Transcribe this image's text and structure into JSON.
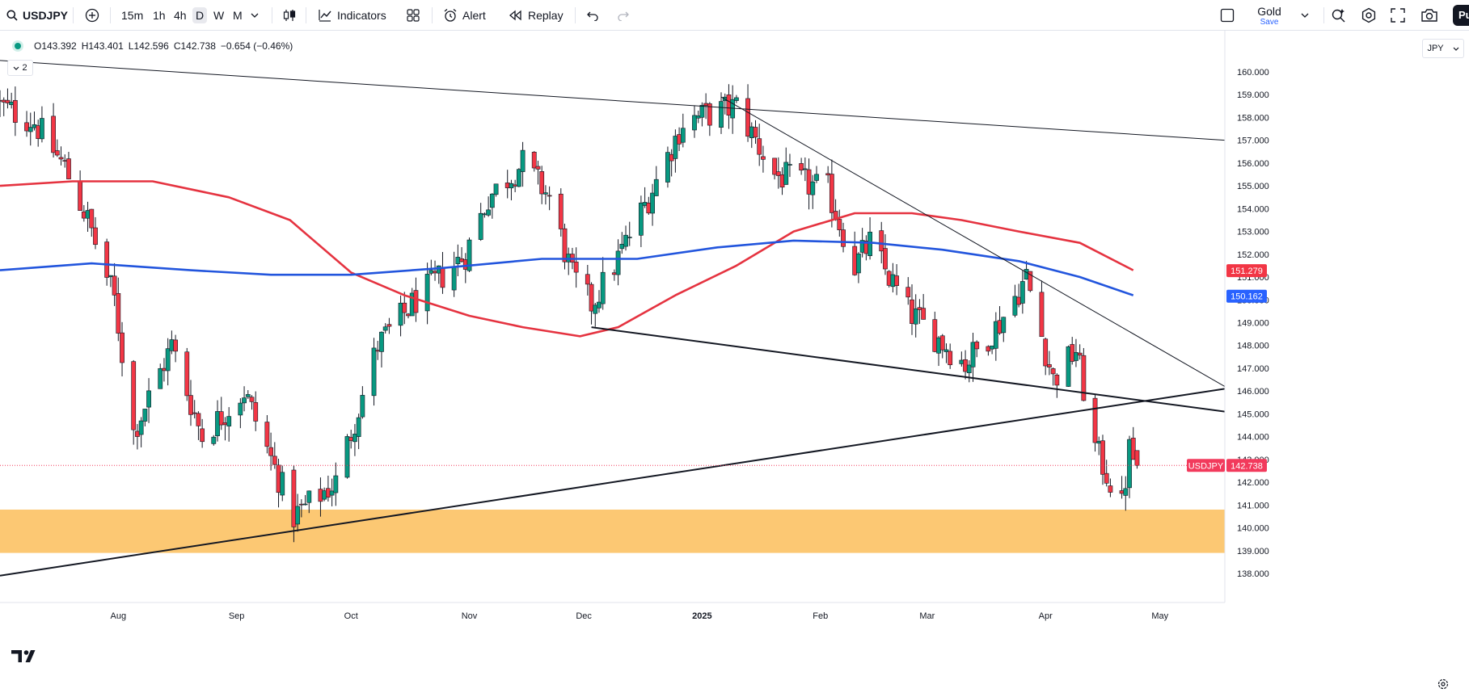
{
  "toolbar": {
    "symbol": "USDJPY",
    "intervals": [
      "15m",
      "1h",
      "4h",
      "D",
      "W",
      "M"
    ],
    "active_interval": "D",
    "indicators_label": "Indicators",
    "alert_label": "Alert",
    "replay_label": "Replay",
    "layout_name": "Gold",
    "save_label": "Save",
    "publish_label": "Pu"
  },
  "legend": {
    "open": "O143.392",
    "high": "H143.401",
    "low": "L142.596",
    "close": "C142.738",
    "change": "−0.654 (−0.46%)",
    "indicator_count": "2"
  },
  "currency": "JPY",
  "colors": {
    "up": "#089981",
    "down": "#f23645",
    "ma_red": "#e53340",
    "ma_blue": "#2255dd",
    "zone": "#fcc56c",
    "price_label": "#f23a5c"
  },
  "chart_data": {
    "type": "candlestick",
    "symbol": "USDJPY",
    "ylim": [
      137.5,
      160.6
    ],
    "y_ticks": [
      "160.000",
      "159.000",
      "158.000",
      "157.000",
      "156.000",
      "155.000",
      "154.000",
      "153.000",
      "152.000",
      "151.000",
      "150.000",
      "149.000",
      "148.000",
      "147.000",
      "146.000",
      "145.000",
      "144.000",
      "143.000",
      "142.000",
      "141.000",
      "140.000",
      "139.000",
      "138.000"
    ],
    "x_ticks": [
      {
        "label": "Aug",
        "date": "2024-08-01"
      },
      {
        "label": "Sep",
        "date": "2024-09-01"
      },
      {
        "label": "Oct",
        "date": "2024-10-01"
      },
      {
        "label": "Nov",
        "date": "2024-11-01"
      },
      {
        "label": "Dec",
        "date": "2024-12-01"
      },
      {
        "label": "2025",
        "date": "2025-01-01"
      },
      {
        "label": "Feb",
        "date": "2025-02-01"
      },
      {
        "label": "Mar",
        "date": "2025-03-01"
      },
      {
        "label": "Apr",
        "date": "2025-04-01"
      },
      {
        "label": "May",
        "date": "2025-05-01"
      }
    ],
    "x_range": [
      "2024-07-01",
      "2025-05-18"
    ],
    "last_price": 142.738,
    "series_labels": [
      {
        "text": "151.279",
        "value": 151.279,
        "color": "#f23645"
      },
      {
        "text": "150.162",
        "value": 150.162,
        "color": "#2962ff"
      }
    ],
    "last_label": {
      "name": "USDJPY",
      "text": "142.738"
    },
    "close_path": [
      {
        "date": "2024-07-01",
        "close": 158.5
      },
      {
        "date": "2024-07-10",
        "close": 157.8
      },
      {
        "date": "2024-07-18",
        "close": 155.8
      },
      {
        "date": "2024-07-24",
        "close": 153.5
      },
      {
        "date": "2024-07-31",
        "close": 150.0
      },
      {
        "date": "2024-08-05",
        "close": 144.2
      },
      {
        "date": "2024-08-15",
        "close": 148.0
      },
      {
        "date": "2024-08-23",
        "close": 144.0
      },
      {
        "date": "2024-09-03",
        "close": 146.0
      },
      {
        "date": "2024-09-16",
        "close": 140.5
      },
      {
        "date": "2024-09-27",
        "close": 142.0
      },
      {
        "date": "2024-10-08",
        "close": 148.0
      },
      {
        "date": "2024-10-18",
        "close": 150.0
      },
      {
        "date": "2024-10-31",
        "close": 152.0
      },
      {
        "date": "2024-11-06",
        "close": 154.5
      },
      {
        "date": "2024-11-15",
        "close": 156.0
      },
      {
        "date": "2024-11-22",
        "close": 154.5
      },
      {
        "date": "2024-11-28",
        "close": 151.0
      },
      {
        "date": "2024-12-03",
        "close": 149.8
      },
      {
        "date": "2024-12-09",
        "close": 151.5
      },
      {
        "date": "2024-12-18",
        "close": 154.5
      },
      {
        "date": "2024-12-27",
        "close": 157.8
      },
      {
        "date": "2025-01-10",
        "close": 158.5
      },
      {
        "date": "2025-01-20",
        "close": 155.5
      },
      {
        "date": "2025-02-03",
        "close": 154.8
      },
      {
        "date": "2025-02-10",
        "close": 151.5
      },
      {
        "date": "2025-02-14",
        "close": 152.5
      },
      {
        "date": "2025-02-24",
        "close": 149.5
      },
      {
        "date": "2025-03-11",
        "close": 147.2
      },
      {
        "date": "2025-03-20",
        "close": 149.0
      },
      {
        "date": "2025-03-27",
        "close": 151.0
      },
      {
        "date": "2025-04-03",
        "close": 146.5
      },
      {
        "date": "2025-04-09",
        "close": 147.8
      },
      {
        "date": "2025-04-14",
        "close": 143.5
      },
      {
        "date": "2025-04-21",
        "close": 140.9
      },
      {
        "date": "2025-04-23",
        "close": 143.4
      },
      {
        "date": "2025-04-25",
        "close": 142.738
      }
    ],
    "moving_averages": [
      {
        "color": "#e53340",
        "points": [
          {
            "date": "2024-07-01",
            "value": 155.0
          },
          {
            "date": "2024-07-20",
            "value": 155.2
          },
          {
            "date": "2024-08-10",
            "value": 155.2
          },
          {
            "date": "2024-08-30",
            "value": 154.5
          },
          {
            "date": "2024-09-15",
            "value": 153.5
          },
          {
            "date": "2024-10-01",
            "value": 151.2
          },
          {
            "date": "2024-10-15",
            "value": 150.2
          },
          {
            "date": "2024-11-01",
            "value": 149.3
          },
          {
            "date": "2024-11-15",
            "value": 148.8
          },
          {
            "date": "2024-11-30",
            "value": 148.4
          },
          {
            "date": "2024-12-10",
            "value": 148.8
          },
          {
            "date": "2024-12-25",
            "value": 150.2
          },
          {
            "date": "2025-01-10",
            "value": 151.5
          },
          {
            "date": "2025-01-25",
            "value": 153.0
          },
          {
            "date": "2025-02-10",
            "value": 153.8
          },
          {
            "date": "2025-02-25",
            "value": 153.8
          },
          {
            "date": "2025-03-10",
            "value": 153.5
          },
          {
            "date": "2025-03-25",
            "value": 153.0
          },
          {
            "date": "2025-04-10",
            "value": 152.5
          },
          {
            "date": "2025-04-24",
            "value": 151.3
          }
        ]
      },
      {
        "color": "#2255dd",
        "points": [
          {
            "date": "2024-07-01",
            "value": 151.3
          },
          {
            "date": "2024-07-25",
            "value": 151.6
          },
          {
            "date": "2024-08-20",
            "value": 151.3
          },
          {
            "date": "2024-09-10",
            "value": 151.1
          },
          {
            "date": "2024-10-01",
            "value": 151.1
          },
          {
            "date": "2024-10-25",
            "value": 151.4
          },
          {
            "date": "2024-11-20",
            "value": 151.8
          },
          {
            "date": "2024-12-15",
            "value": 151.8
          },
          {
            "date": "2025-01-05",
            "value": 152.3
          },
          {
            "date": "2025-01-25",
            "value": 152.6
          },
          {
            "date": "2025-02-15",
            "value": 152.5
          },
          {
            "date": "2025-03-05",
            "value": 152.2
          },
          {
            "date": "2025-03-25",
            "value": 151.7
          },
          {
            "date": "2025-04-10",
            "value": 151.0
          },
          {
            "date": "2025-04-24",
            "value": 150.2
          }
        ]
      }
    ],
    "trendlines": [
      {
        "from": {
          "date": "2024-07-01",
          "value": 160.5
        },
        "to": {
          "date": "2025-05-18",
          "value": 157.0
        },
        "width": 1
      },
      {
        "from": {
          "date": "2025-01-06",
          "value": 158.9
        },
        "to": {
          "date": "2025-05-18",
          "value": 146.2
        },
        "width": 1
      },
      {
        "from": {
          "date": "2024-12-03",
          "value": 148.8
        },
        "to": {
          "date": "2025-05-18",
          "value": 145.1
        },
        "width": 2
      },
      {
        "from": {
          "date": "2024-07-01",
          "value": 137.9
        },
        "to": {
          "date": "2025-05-18",
          "value": 146.1
        },
        "width": 2
      }
    ],
    "zone": {
      "from_date": "2024-07-01",
      "to_date": "2025-05-18",
      "low": 138.9,
      "high": 140.8
    }
  }
}
